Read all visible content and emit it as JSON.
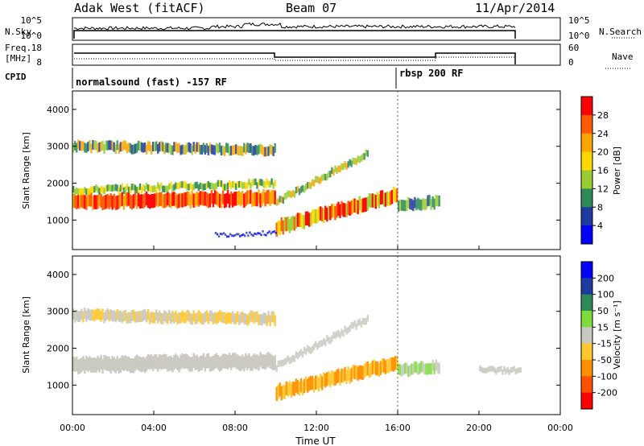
{
  "header": {
    "station": "Adak West (fitACF)",
    "beam": "Beam 07",
    "date": "11/Apr/2014"
  },
  "sky_panel": {
    "left_label": "N.Sky",
    "right_label": "N.Search",
    "left_ticks": [
      "10^5",
      "10^0"
    ],
    "right_ticks": [
      "10^5",
      "10^0"
    ]
  },
  "freq_panel": {
    "left_label_1": "Freq.",
    "left_label_2": "[MHz]",
    "right_label": "Nave",
    "left_ticks": [
      "18",
      "8"
    ],
    "right_ticks": [
      "60",
      "0"
    ]
  },
  "cpid": {
    "label": "CPID",
    "segments": [
      {
        "name": "normalsound (fast) -157 RF",
        "start": 0,
        "end": 16
      },
      {
        "name": "rbsp 200 RF",
        "start": 16,
        "end": 24
      }
    ]
  },
  "chart_data": [
    {
      "type": "heatmap",
      "name": "power",
      "ylabel": "Slant Range [km]",
      "xlabel": "Time UT",
      "ylim": [
        200,
        4500
      ],
      "xlim": [
        0,
        24
      ],
      "y_ticks": [
        "1000",
        "2000",
        "3000",
        "4000"
      ],
      "colorbar": {
        "label": "Power [dB]",
        "ticks": [
          "28",
          "24",
          "20",
          "16",
          "12",
          "8",
          "4"
        ],
        "colors": [
          "#ff0000",
          "#ff5a00",
          "#ffa500",
          "#ffd700",
          "#9acd32",
          "#2e8b57",
          "#1e3c9f",
          "#0000ff"
        ]
      }
    },
    {
      "type": "heatmap",
      "name": "velocity",
      "ylabel": "Slant Range [km]",
      "xlabel": "Time UT",
      "ylim": [
        200,
        4500
      ],
      "xlim": [
        0,
        24
      ],
      "y_ticks": [
        "1000",
        "2000",
        "3000",
        "4000"
      ],
      "colorbar": {
        "label": "Velocity [m s⁻¹]",
        "ticks": [
          "200",
          "100",
          "50",
          "15",
          "-15",
          "-50",
          "-100",
          "-200"
        ],
        "colors": [
          "#0000ff",
          "#1e3c9f",
          "#2e8b57",
          "#7ddc3c",
          "#c8c8c0",
          "#ffc830",
          "#ff9000",
          "#ff5000",
          "#ff0000"
        ]
      }
    }
  ],
  "time_axis": {
    "labels": [
      "00:00",
      "04:00",
      "08:00",
      "12:00",
      "16:00",
      "20:00",
      "00:00"
    ],
    "title": "Time UT"
  }
}
